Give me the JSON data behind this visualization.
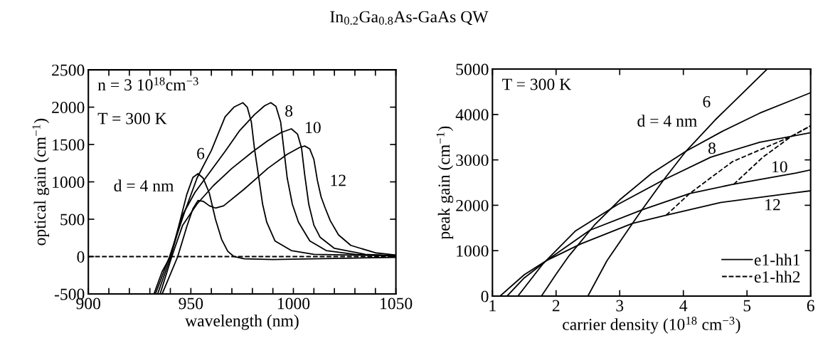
{
  "chart_data": [
    {
      "type": "line",
      "title": "In$_{0.2}$Ga$_{0.8}$As-GaAs QW",
      "xlabel": "wavelength (nm)",
      "ylabel": "optical gain (cm$^{−1}$)",
      "xlim": [
        900,
        1050
      ],
      "xticks": [
        900,
        {
          "value": 910,
          "label": null
        },
        {
          "value": 920,
          "label": null
        },
        {
          "value": 930,
          "label": null
        },
        {
          "value": 940,
          "label": null
        },
        950,
        {
          "value": 960,
          "label": null
        },
        {
          "value": 970,
          "label": null
        },
        {
          "value": 980,
          "label": null
        },
        {
          "value": 990,
          "label": null
        },
        1000,
        {
          "value": 1010,
          "label": null
        },
        {
          "value": 1020,
          "label": null
        },
        {
          "value": 1030,
          "label": null
        },
        {
          "value": 1040,
          "label": null
        },
        1050
      ],
      "ylim": [
        -500,
        2500
      ],
      "yticks": [
        {
          "value": -500,
          "label": "-500"
        },
        0,
        500,
        1000,
        1500,
        2000,
        2500
      ],
      "ref_lines": [
        {
          "axis": "y",
          "value": 0,
          "color": "#000000",
          "line_style": "dashed"
        }
      ],
      "series": [
        {
          "color": "#000000",
          "line_style": "solid",
          "x": [
            932,
            936,
            940,
            944,
            948,
            951,
            953.5,
            956,
            959,
            962,
            965,
            968,
            971,
            976,
            990,
            1010,
            1030,
            1050
          ],
          "values": [
            -500,
            -200,
            0,
            400,
            830,
            1060,
            1110,
            1050,
            850,
            500,
            230,
            70,
            0,
            -30,
            -40,
            -30,
            -20,
            -10
          ]
        },
        {
          "color": "#000000",
          "line_style": "solid",
          "x": [
            932.7,
            939.6,
            947,
            953,
            960,
            966.7,
            971,
            975.4,
            977.5,
            979.5,
            981,
            983,
            985,
            987,
            991,
            999,
            1010,
            1050
          ],
          "values": [
            -500,
            0,
            600,
            1050,
            1420,
            1870,
            2000,
            2060,
            2000,
            1800,
            1450,
            1080,
            700,
            460,
            210,
            80,
            30,
            10
          ]
        },
        {
          "color": "#000000",
          "line_style": "solid",
          "x": [
            933.8,
            940.2,
            946,
            952,
            959.8,
            967,
            973.6,
            981,
            986,
            989,
            991.5,
            993.8,
            995.5,
            997,
            999.5,
            1002.5,
            1008,
            1016,
            1030,
            1050
          ],
          "values": [
            -500,
            0,
            560,
            860,
            1150,
            1420,
            1680,
            1900,
            2020,
            2060,
            2010,
            1800,
            1400,
            1050,
            700,
            460,
            210,
            80,
            30,
            10
          ]
        },
        {
          "color": "#000000",
          "line_style": "solid",
          "x": [
            935,
            940.7,
            946,
            952.9,
            961,
            970,
            980,
            987.5,
            994,
            999,
            1002,
            1004,
            1005.5,
            1007.5,
            1010,
            1013,
            1020,
            1035,
            1050
          ],
          "values": [
            -500,
            0,
            420,
            700,
            950,
            1180,
            1400,
            1550,
            1660,
            1710,
            1640,
            1450,
            1100,
            700,
            420,
            260,
            110,
            30,
            10
          ]
        },
        {
          "color": "#000000",
          "line_style": "solid",
          "x": [
            936,
            943.6,
            948,
            951,
            953.5,
            956,
            959,
            962,
            966,
            975.9,
            987.5,
            997,
            1003,
            1005.5,
            1008,
            1010,
            1011.7,
            1013.5,
            1015.5,
            1018,
            1022,
            1028,
            1040,
            1050
          ],
          "values": [
            -500,
            0,
            400,
            640,
            750,
            740,
            680,
            650,
            680,
            900,
            1180,
            1370,
            1460,
            1480,
            1440,
            1300,
            1020,
            800,
            650,
            480,
            290,
            150,
            50,
            20
          ]
        }
      ],
      "annotations": [
        "n = 3 10$^{18}$cm$^{−3}$",
        "T = 300 K",
        "d = 4 nm",
        "6",
        "8",
        "10",
        "12"
      ]
    },
    {
      "type": "line",
      "xlabel": "carrier density (10$^{18}$ cm$^{−3}$)",
      "ylabel": "peak gain (cm$^{−1}$)",
      "xlim": [
        1,
        6
      ],
      "xticks": [
        1,
        2,
        3,
        4,
        5,
        6
      ],
      "ylim": [
        0,
        5000
      ],
      "yticks": [
        0,
        1000,
        2000,
        3000,
        4000,
        5000
      ],
      "legend": "bottom right",
      "series": [
        {
          "name": "e1-hh1",
          "color": "#000000",
          "line_style": "solid",
          "x": [
            2.5,
            2.8,
            3.2,
            3.35,
            3.69,
            4.04,
            4.5,
            5.31
          ],
          "values": [
            0,
            780,
            1600,
            1900,
            2560,
            3190,
            3880,
            4990
          ]
        },
        {
          "color": "#000000",
          "line_style": "solid",
          "x": [
            1.77,
            2.0,
            2.2,
            2.6,
            3.0,
            3.5,
            4.04,
            4.6,
            5.2,
            5.77,
            6
          ],
          "values": [
            0,
            480,
            880,
            1560,
            2120,
            2700,
            3190,
            3620,
            4030,
            4350,
            4480
          ]
        },
        {
          "color": "#000000",
          "line_style": "solid",
          "x": [
            1.4,
            1.8,
            2.3,
            2.96,
            3.69,
            4.43,
            5.2,
            6
          ],
          "values": [
            0,
            720,
            1430,
            2010,
            2560,
            3060,
            3390,
            3600
          ]
        },
        {
          "color": "#000000",
          "line_style": "solid",
          "x": [
            1.23,
            1.5,
            1.86,
            2.53,
            3.35,
            4.1,
            4.77,
            5.77,
            6
          ],
          "values": [
            0,
            400,
            790,
            1450,
            1900,
            2260,
            2460,
            2710,
            2780
          ]
        },
        {
          "color": "#000000",
          "line_style": "solid",
          "x": [
            1.12,
            1.5,
            1.86,
            2.39,
            3.2,
            3.73,
            4.58,
            5.77,
            6
          ],
          "values": [
            0,
            470,
            790,
            1150,
            1600,
            1780,
            2060,
            2280,
            2320
          ]
        },
        {
          "name": "e1-hh2",
          "color": "#000000",
          "line_style": "dashed",
          "x": [
            3.73,
            4.1,
            4.77,
            5.7,
            6
          ],
          "values": [
            1780,
            2260,
            2960,
            3520,
            3750
          ]
        },
        {
          "color": "#000000",
          "line_style": "dashed",
          "x": [
            4.79,
            5.25,
            5.7,
            6
          ],
          "values": [
            2460,
            3060,
            3520,
            3750
          ]
        }
      ],
      "annotations": [
        "T = 300 K",
        "d = 4 nm",
        "6",
        "8",
        "10",
        "12"
      ]
    }
  ]
}
